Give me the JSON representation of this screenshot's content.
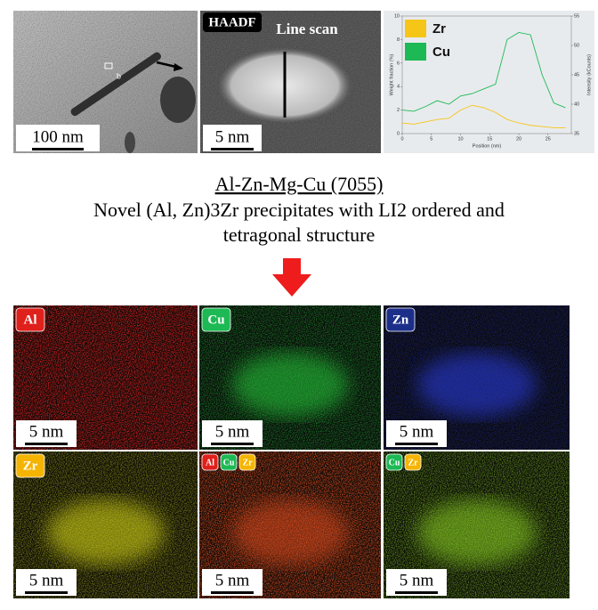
{
  "top_row": {
    "tem_scale": "100 nm",
    "tem_marker": "b",
    "haadf_label": "HAADF",
    "line_scan_label": "Line scan",
    "haadf_scale": "5 nm"
  },
  "chart_data": {
    "type": "line",
    "x_label": "Position (nm)",
    "y_label": "Weight fraction (%)",
    "y2_label": "Intensity (kCounts)",
    "x": [
      0,
      2,
      4,
      6,
      8,
      10,
      12,
      14,
      16,
      18,
      20,
      22,
      24,
      26,
      28
    ],
    "series": [
      {
        "name": "Zr",
        "color": "#f5c518",
        "values": [
          0.9,
          0.8,
          1.0,
          1.2,
          1.3,
          2.0,
          2.4,
          2.2,
          1.8,
          1.2,
          0.9,
          0.7,
          0.6,
          0.5,
          0.5
        ]
      },
      {
        "name": "Cu",
        "color": "#1db954",
        "values": [
          2.0,
          1.9,
          2.3,
          2.8,
          2.5,
          3.2,
          3.4,
          3.8,
          4.2,
          8.0,
          8.6,
          8.4,
          5.0,
          2.6,
          2.2
        ]
      }
    ],
    "xlim": [
      0,
      29
    ],
    "xticks": [
      0,
      5,
      10,
      15,
      20,
      25
    ],
    "ylim": [
      0,
      10
    ],
    "yticks": [
      0,
      2,
      4,
      6,
      8,
      10
    ],
    "y2lim": [
      35,
      55
    ],
    "y2ticks": [
      35,
      40,
      45,
      50,
      55
    ],
    "legend_position": "upper left"
  },
  "caption": {
    "alloy": "Al-Zn-Mg-Cu (7055)",
    "lines": [
      "Novel (Al, Zn)3Zr precipitates with LI2 ordered and",
      "tetragonal structure"
    ]
  },
  "maps": [
    {
      "tint": "#e0201b",
      "labels": [
        {
          "text": "Al",
          "color": "#e0201b"
        }
      ],
      "scale": "5 nm"
    },
    {
      "tint": "#25c93a",
      "labels": [
        {
          "text": "Cu",
          "color": "#1db954"
        }
      ],
      "scale": "5 nm"
    },
    {
      "tint": "#2a3de0",
      "labels": [
        {
          "text": "Zn",
          "color": "#1b2f8a"
        }
      ],
      "scale": "5 nm"
    },
    {
      "tint": "#d8d818",
      "labels": [
        {
          "text": "Zr",
          "color": "#f5b400"
        }
      ],
      "scale": "5 nm"
    },
    {
      "tint": "#d84a1a",
      "labels": [
        {
          "text": "Al",
          "color": "#e0201b"
        },
        {
          "text": "Cu",
          "color": "#1db954"
        },
        {
          "text": "Zr",
          "color": "#f5b400"
        }
      ],
      "scale": "5 nm"
    },
    {
      "tint": "#8ad020",
      "labels": [
        {
          "text": "Cu",
          "color": "#1db954"
        },
        {
          "text": "Zr",
          "color": "#f5b400"
        }
      ],
      "scale": "5 nm"
    }
  ]
}
